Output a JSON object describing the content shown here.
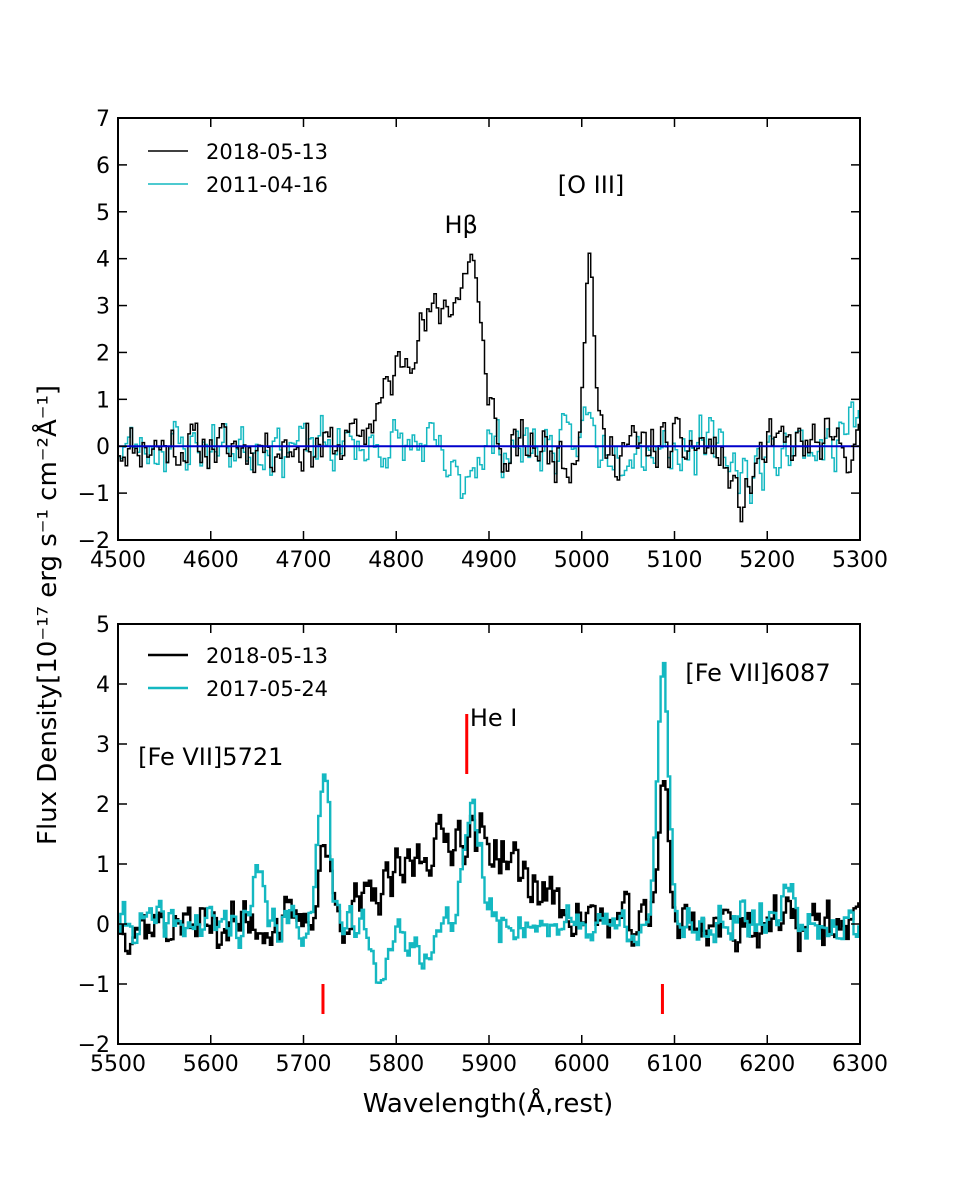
{
  "chart_data": [
    {
      "type": "line",
      "panel": "top",
      "xlim": [
        4500,
        5300
      ],
      "ylim": [
        -2,
        7
      ],
      "xticks": [
        4500,
        4600,
        4700,
        4800,
        4900,
        5000,
        5100,
        5200,
        5300
      ],
      "yticks": [
        -2,
        -1,
        0,
        1,
        2,
        3,
        4,
        5,
        6,
        7
      ],
      "zero_line": {
        "y": 0,
        "color": "#0000cc"
      },
      "series": [
        {
          "name": "2018-05-13",
          "color": "#000000",
          "features": [
            [
              4820,
              2.0,
              30
            ],
            [
              4870,
              2.5,
              25
            ],
            [
              4880,
              1.5,
              6
            ],
            [
              5007,
              4.2,
              6
            ],
            [
              5000,
              -0.3,
              25
            ],
            [
              4915,
              -0.9,
              8
            ],
            [
              5170,
              -1.2,
              12
            ]
          ],
          "noise": 0.55,
          "seed": 11
        },
        {
          "name": "2011-04-16",
          "color": "#14b8c1",
          "features": [
            [
              4865,
              -0.8,
              12
            ],
            [
              5005,
              0.7,
              5
            ],
            [
              5180,
              -0.6,
              15
            ],
            [
              5290,
              0.6,
              8
            ]
          ],
          "noise": 0.6,
          "seed": 23
        }
      ],
      "annotations": [
        {
          "text": "Hβ",
          "x": 4870,
          "y": 4.55
        },
        {
          "text": "[O III]",
          "x": 5010,
          "y": 5.4
        }
      ]
    },
    {
      "type": "line",
      "panel": "bottom",
      "xlim": [
        5500,
        6300
      ],
      "ylim": [
        -2,
        5
      ],
      "xticks": [
        5500,
        5600,
        5700,
        5800,
        5900,
        6000,
        6100,
        6200,
        6300
      ],
      "yticks": [
        -2,
        -1,
        0,
        1,
        2,
        3,
        4,
        5
      ],
      "series": [
        {
          "name": "2018-05-13",
          "color": "#000000",
          "features": [
            [
              5721,
              1.3,
              6
            ],
            [
              5870,
              1.5,
              60
            ],
            [
              6087,
              2.7,
              5
            ]
          ],
          "noise": 0.45,
          "seed": 37
        },
        {
          "name": "2017-05-24",
          "color": "#14b8c1",
          "features": [
            [
              5721,
              2.8,
              6
            ],
            [
              5880,
              1.8,
              10
            ],
            [
              5820,
              -0.4,
              20
            ],
            [
              5780,
              -0.6,
              10
            ],
            [
              6087,
              4.2,
              6
            ],
            [
              5650,
              0.8,
              5
            ],
            [
              6220,
              0.9,
              5
            ]
          ],
          "noise": 0.35,
          "seed": 41
        }
      ],
      "markers": [
        {
          "x": 5721,
          "y_from": -1.5,
          "y_to": -1.0,
          "color": "#ff0000"
        },
        {
          "x": 5876,
          "y_from": 2.5,
          "y_to": 3.5,
          "color": "#ff0000"
        },
        {
          "x": 6087,
          "y_from": -1.5,
          "y_to": -1.0,
          "color": "#ff0000"
        }
      ],
      "annotations": [
        {
          "text": "[Fe VII]5721",
          "x": 5600,
          "y": 2.65
        },
        {
          "text": "He I",
          "x": 5905,
          "y": 3.3
        },
        {
          "text": "[Fe VII]6087",
          "x": 6190,
          "y": 4.05
        }
      ],
      "xlabel": "Wavelength(Å,rest)"
    }
  ],
  "shared_ylabel": "Flux Density[10⁻¹⁷ erg s⁻¹ cm⁻²Å⁻¹]"
}
